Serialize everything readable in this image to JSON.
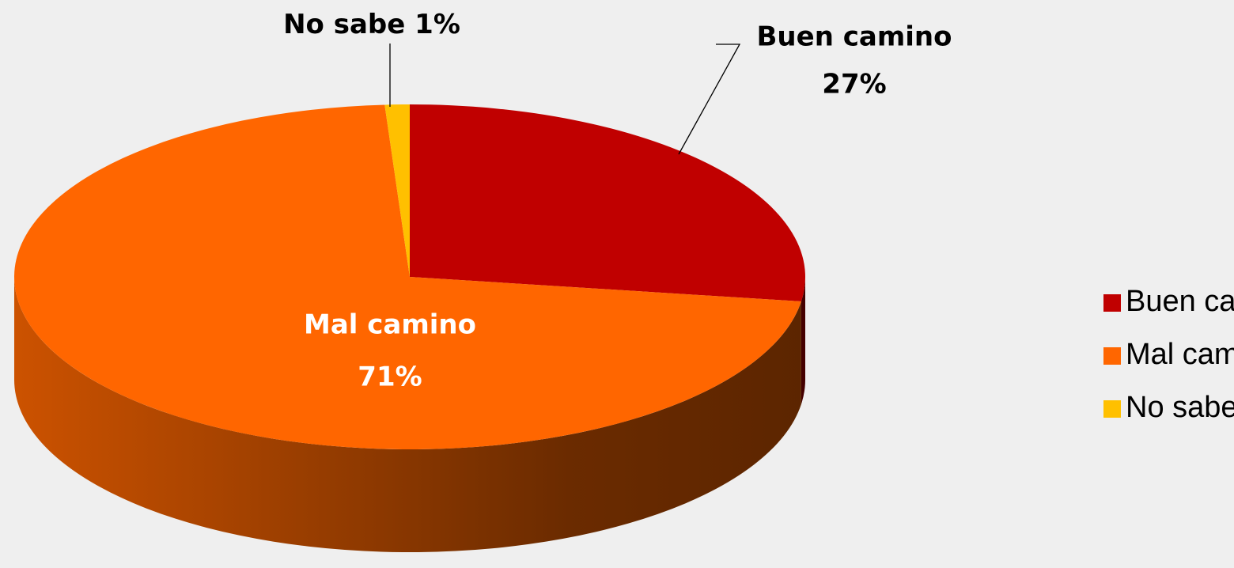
{
  "chart_data": {
    "type": "pie",
    "categories": [
      "Buen camino",
      "Mal camino",
      "No sabe"
    ],
    "values": [
      27,
      71,
      1
    ],
    "value_labels": [
      "27%",
      "71%",
      "1%"
    ],
    "colors": [
      "#c00000",
      "#ff6600",
      "#ffc000"
    ],
    "legend": "right"
  }
}
